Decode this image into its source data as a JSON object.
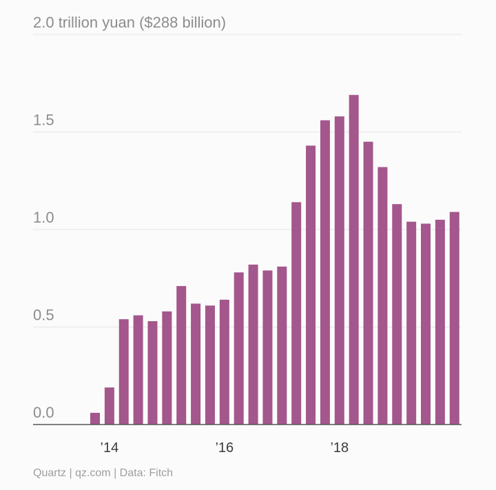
{
  "chart_data": {
    "type": "bar",
    "title": "",
    "xlabel": "",
    "ylabel": "",
    "ylim": [
      0,
      2.0
    ],
    "y_ticks": [
      {
        "value": 2.0,
        "label": "2.0 trillion yuan ($288 billion)"
      },
      {
        "value": 1.5,
        "label": "1.5"
      },
      {
        "value": 1.0,
        "label": "1.0"
      },
      {
        "value": 0.5,
        "label": "0.5"
      },
      {
        "value": 0.0,
        "label": "0.0"
      }
    ],
    "x_ticks": [
      {
        "index": 1,
        "label": "’14"
      },
      {
        "index": 9,
        "label": "’16"
      },
      {
        "index": 17,
        "label": "’18"
      }
    ],
    "values": [
      0.06,
      0.19,
      0.54,
      0.56,
      0.53,
      0.58,
      0.71,
      0.62,
      0.61,
      0.64,
      0.78,
      0.82,
      0.79,
      0.81,
      1.14,
      1.43,
      1.56,
      1.58,
      1.69,
      1.45,
      1.32,
      1.13,
      1.04,
      1.03,
      1.05,
      1.09
    ],
    "grid": true,
    "bar_color": "#a3578c",
    "grid_color": "#e4e4e4"
  },
  "footer": "Quartz | qz.com | Data: Fitch"
}
